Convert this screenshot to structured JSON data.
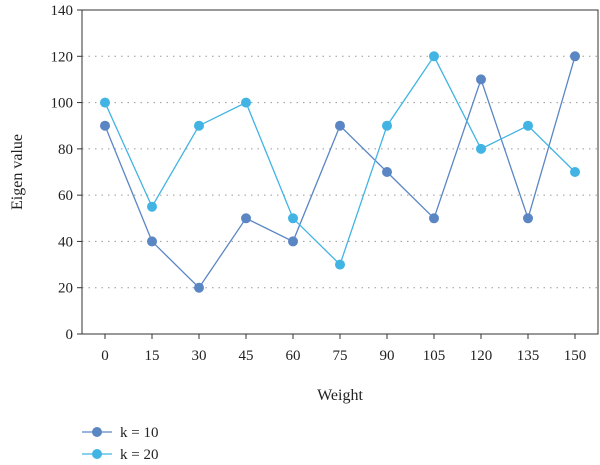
{
  "chart_data": {
    "type": "line",
    "title": "",
    "xlabel": "Weight",
    "ylabel": "Eigen value",
    "x": [
      0,
      15,
      30,
      45,
      60,
      75,
      90,
      105,
      120,
      135,
      150
    ],
    "x_tick_labels": [
      "0",
      "15",
      "30",
      "45",
      "60",
      "75",
      "90",
      "105",
      "120",
      "135",
      "150"
    ],
    "y_tick_labels": [
      "0",
      "20",
      "40",
      "60",
      "80",
      "100",
      "120",
      "140"
    ],
    "ylim": [
      0,
      140
    ],
    "grid": "horizontal-dotted",
    "legend_position": "bottom-left",
    "series": [
      {
        "name": "k = 10",
        "color": "#5b86c4",
        "values": [
          90,
          40,
          20,
          50,
          40,
          90,
          70,
          50,
          110,
          50,
          120
        ]
      },
      {
        "name": "k = 20",
        "color": "#41b4e3",
        "values": [
          100,
          55,
          90,
          100,
          50,
          30,
          90,
          120,
          80,
          90,
          70
        ]
      }
    ]
  }
}
